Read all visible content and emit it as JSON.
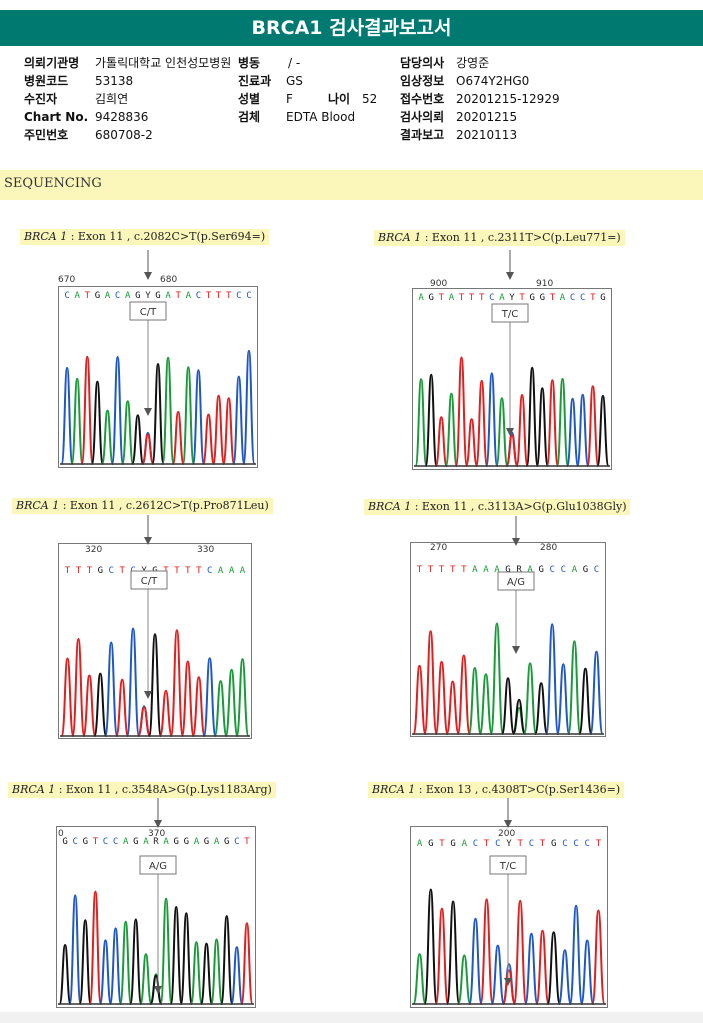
{
  "report_title": "BRCA1 검사결과보고서",
  "info": {
    "col1": [
      {
        "label": "의뢰기관명",
        "value": "가톨릭대학교 인천성모병원"
      },
      {
        "label": "병원코드",
        "value": "53138"
      },
      {
        "label": "수진자",
        "value": "김희연"
      },
      {
        "label": "Chart No.",
        "value": "9428836"
      },
      {
        "label": "주민번호",
        "value": "680708-2"
      }
    ],
    "col2": [
      {
        "label": "병동",
        "value": "/ -"
      },
      {
        "label": "진료과",
        "value": "GS"
      },
      {
        "label": "성별",
        "value": "F"
      },
      {
        "label": "검체",
        "value": "EDTA Blood"
      }
    ],
    "age": {
      "label": "나이",
      "value": "52"
    },
    "col3": [
      {
        "label": "담당의사",
        "value": "강영준"
      },
      {
        "label": "임상정보",
        "value": "O674Y2HG0"
      },
      {
        "label": "접수번호",
        "value": "20201215-12929"
      },
      {
        "label": "검사의뢰",
        "value": "20201215"
      },
      {
        "label": "결과보고",
        "value": "20210113"
      }
    ]
  },
  "section_title": "SEQUENCING",
  "panels": [
    {
      "gene": "BRCA 1",
      "desc": " : Exon 11 , c.2082C>T(p.Ser694=)",
      "call": "C/T",
      "pos_left": "670",
      "pos_right": "680",
      "seq": "CATGACAGYGATACTTTCC"
    },
    {
      "gene": "BRCA 1",
      "desc": " : Exon 11 , c.2311T>C(p.Leu771=)",
      "call": "T/C",
      "pos_left": "900",
      "pos_right": "910",
      "seq": "AGTATTTCAYTGGTACCTG"
    },
    {
      "gene": "BRCA 1",
      "desc": " : Exon 11 , c.2612C>T(p.Pro871Leu)",
      "call": "C/T",
      "pos_left": "320",
      "pos_right": "330",
      "seq": "TTTGCTCYGTTTTCAAA"
    },
    {
      "gene": "BRCA 1",
      "desc": " : Exon 11 , c.3113A>G(p.Glu1038Gly)",
      "call": "A/G",
      "pos_left": "270",
      "pos_right": "280",
      "seq": "TTTTTAAAGRAGCCAGC"
    },
    {
      "gene": "BRCA 1",
      "desc": " : Exon 11 , c.3548A>G(p.Lys1183Arg)",
      "call": "A/G",
      "pos_left": "0",
      "pos_right": "370",
      "seq": "GCGTCCAGARAGGAGAGCT"
    },
    {
      "gene": "BRCA 1",
      "desc": " : Exon 13 , c.4308T>C(p.Ser1436=)",
      "call": "T/C",
      "pos_left": "",
      "pos_right": "200",
      "seq": "AGTGACTCYTCTGCCCT"
    }
  ],
  "base_colors": {
    "A": "#1a9b3a",
    "C": "#1f57c8",
    "G": "#111111",
    "T": "#e21e1e",
    "Y": "#222222",
    "R": "#222222"
  }
}
